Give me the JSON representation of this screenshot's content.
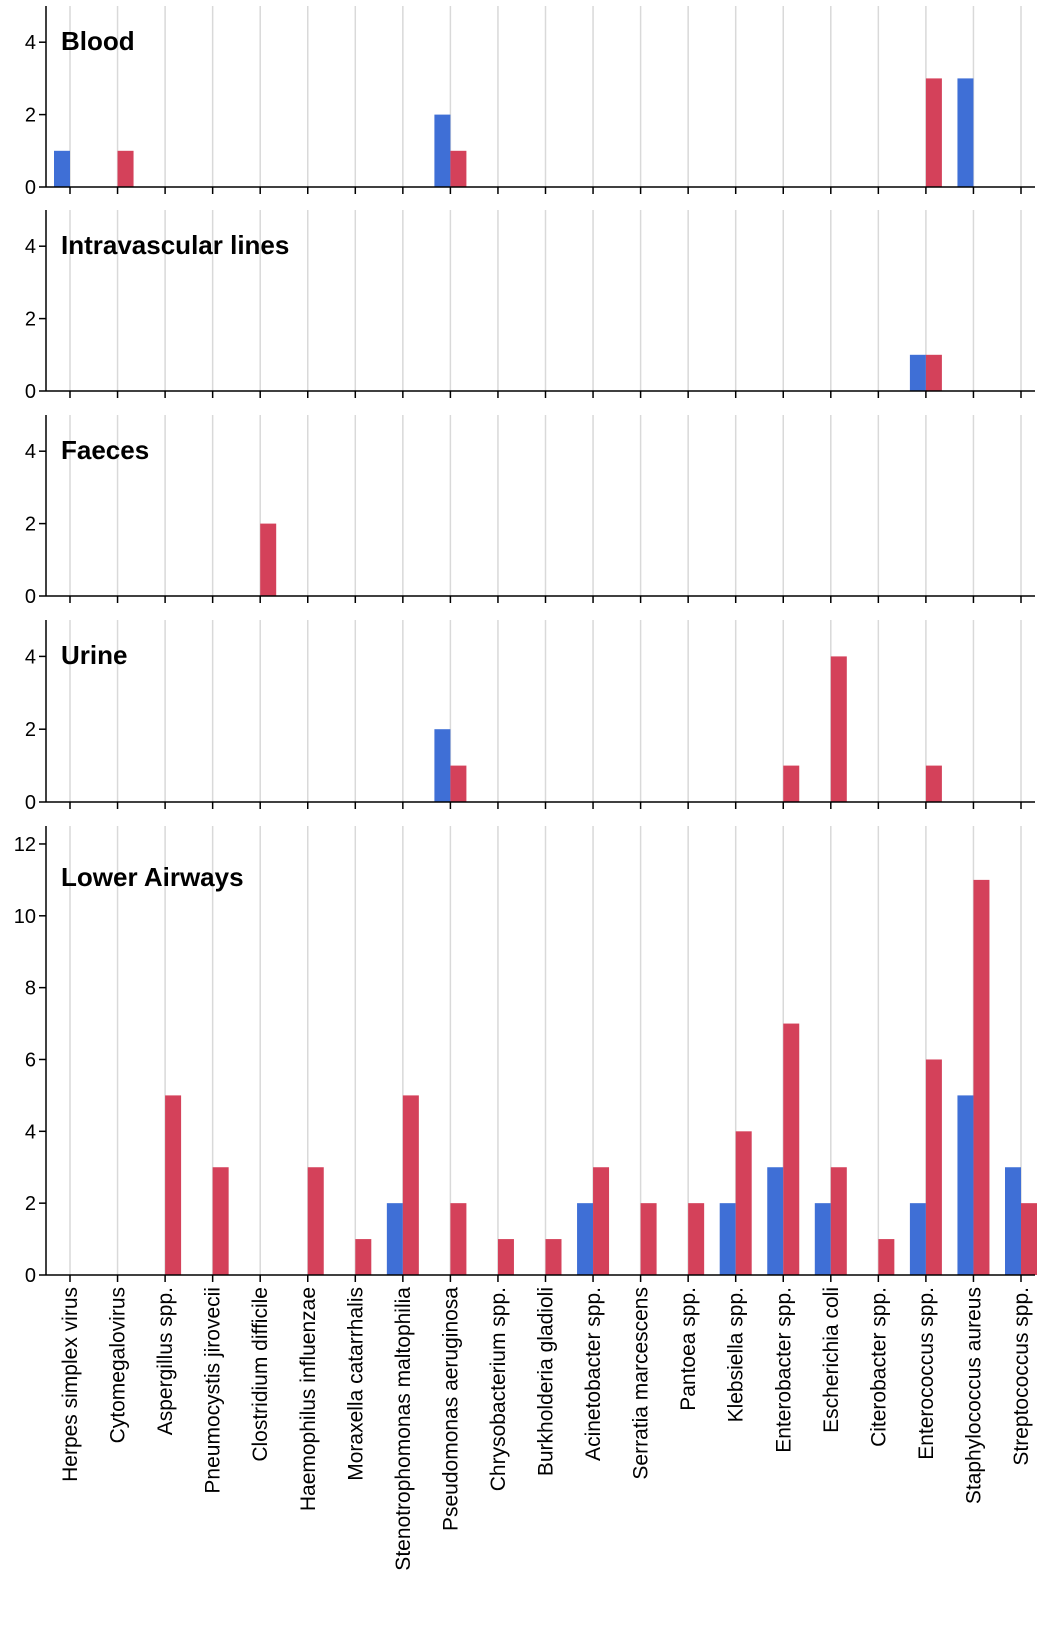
{
  "chart_data": {
    "type": "bar",
    "categories": [
      "Herpes simplex virus",
      "Cytomegalovirus",
      "Aspergillus spp.",
      "Pneumocystis jirovecii",
      "Clostridium difficile",
      "Haemophilus influenzae",
      "Moraxella catarrhalis",
      "Stenotrophomonas maltophilia",
      "Pseudomonas aeruginosa",
      "Chrysobacterium spp.",
      "Burkholderia gladioli",
      "Acinetobacter spp.",
      "Serratia marcescens",
      "Pantoea spp.",
      "Klebsiella spp.",
      "Enterobacter spp.",
      "Escherichia coli",
      "Citerobacter spp.",
      "Enterococcus spp.",
      "Staphylococcus aureus",
      "Streptococcus spp."
    ],
    "colors": {
      "series_a": "#3f6fd6",
      "series_b": "#d4415a"
    },
    "panels": [
      {
        "title": "Blood",
        "ylim": [
          0,
          5
        ],
        "yticks": [
          "0",
          "2",
          "4"
        ],
        "series": [
          {
            "values": [
              1,
              0,
              0,
              0,
              0,
              0,
              0,
              0,
              2,
              0,
              0,
              0,
              0,
              0,
              0,
              0,
              0,
              0,
              0,
              3,
              0
            ]
          },
          {
            "values": [
              0,
              1,
              0,
              0,
              0,
              0,
              0,
              0,
              1,
              0,
              0,
              0,
              0,
              0,
              0,
              0,
              0,
              0,
              3,
              0,
              0
            ]
          }
        ]
      },
      {
        "title": "Intravascular lines",
        "ylim": [
          0,
          5
        ],
        "yticks": [
          "0",
          "2",
          "4"
        ],
        "series": [
          {
            "values": [
              0,
              0,
              0,
              0,
              0,
              0,
              0,
              0,
              0,
              0,
              0,
              0,
              0,
              0,
              0,
              0,
              0,
              0,
              1,
              0,
              0
            ]
          },
          {
            "values": [
              0,
              0,
              0,
              0,
              0,
              0,
              0,
              0,
              0,
              0,
              0,
              0,
              0,
              0,
              0,
              0,
              0,
              0,
              1,
              0,
              0
            ]
          }
        ]
      },
      {
        "title": "Faeces",
        "ylim": [
          0,
          5
        ],
        "yticks": [
          "0",
          "2",
          "4"
        ],
        "series": [
          {
            "values": [
              0,
              0,
              0,
              0,
              0,
              0,
              0,
              0,
              0,
              0,
              0,
              0,
              0,
              0,
              0,
              0,
              0,
              0,
              0,
              0,
              0
            ]
          },
          {
            "values": [
              0,
              0,
              0,
              0,
              2,
              0,
              0,
              0,
              0,
              0,
              0,
              0,
              0,
              0,
              0,
              0,
              0,
              0,
              0,
              0,
              0
            ]
          }
        ]
      },
      {
        "title": "Urine",
        "ylim": [
          0,
          5
        ],
        "yticks": [
          "0",
          "2",
          "4"
        ],
        "series": [
          {
            "values": [
              0,
              0,
              0,
              0,
              0,
              0,
              0,
              0,
              2,
              0,
              0,
              0,
              0,
              0,
              0,
              0,
              0,
              0,
              0,
              0,
              0
            ]
          },
          {
            "values": [
              0,
              0,
              0,
              0,
              0,
              0,
              0,
              0,
              1,
              0,
              0,
              0,
              0,
              0,
              0,
              1,
              4,
              0,
              1,
              0,
              0
            ]
          }
        ]
      },
      {
        "title": "Lower Airways",
        "ylim": [
          0,
          12.5
        ],
        "yticks": [
          "0",
          "2",
          "4",
          "6",
          "8",
          "10",
          "12"
        ],
        "series": [
          {
            "values": [
              0,
              0,
              0,
              0,
              0,
              0,
              0,
              2,
              0,
              0,
              0,
              2,
              0,
              0,
              2,
              3,
              2,
              0,
              2,
              5,
              3
            ]
          },
          {
            "values": [
              0,
              0,
              5,
              3,
              0,
              3,
              1,
              5,
              2,
              1,
              1,
              3,
              2,
              2,
              4,
              7,
              3,
              1,
              6,
              11,
              2
            ]
          }
        ]
      }
    ]
  }
}
